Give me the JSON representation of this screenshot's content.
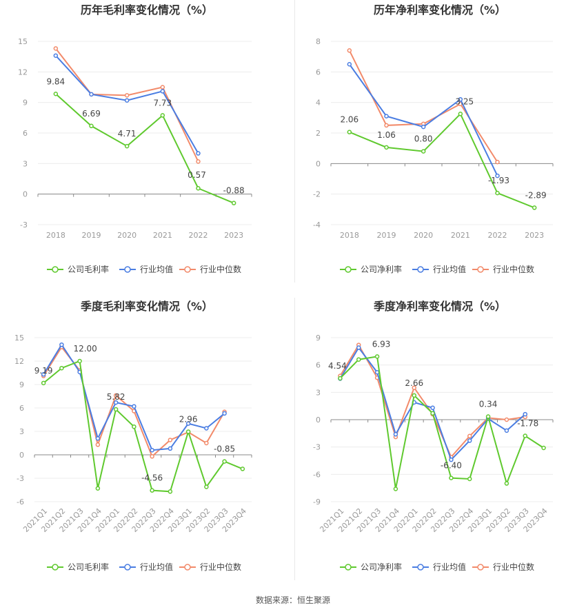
{
  "source": "数据来源：恒生聚源",
  "legend_labels_gross": [
    "公司毛利率",
    "行业均值",
    "行业中位数"
  ],
  "legend_labels_net": [
    "公司净利率",
    "行业均值",
    "行业中位数"
  ],
  "colors": {
    "company": "#5fc92e",
    "industry_avg": "#4a7de2",
    "industry_median": "#f28a6a",
    "grid": "#ececec",
    "axis_text": "#999999",
    "label_text": "#444444",
    "title_text": "#333333"
  },
  "chart_data": [
    {
      "type": "line",
      "title": "历年毛利率变化情况（%）",
      "categories": [
        "2018",
        "2019",
        "2020",
        "2021",
        "2022",
        "2023"
      ],
      "yticks": [
        -3,
        0,
        3,
        6,
        9,
        12,
        15
      ],
      "ylim": [
        -3,
        15
      ],
      "series": [
        {
          "name": "公司毛利率",
          "values": [
            9.84,
            6.69,
            4.71,
            7.73,
            0.57,
            -0.88
          ]
        },
        {
          "name": "行业均值",
          "values": [
            13.6,
            9.8,
            9.2,
            10.1,
            4.0,
            null
          ]
        },
        {
          "name": "行业中位数",
          "values": [
            14.3,
            9.8,
            9.7,
            10.5,
            3.2,
            null
          ]
        }
      ],
      "data_labels": [
        "9.84",
        "6.69",
        "4.71",
        "7.73",
        "0.57",
        "-0.88"
      ],
      "xlabel": "",
      "ylabel": ""
    },
    {
      "type": "line",
      "title": "历年净利率变化情况（%）",
      "categories": [
        "2018",
        "2019",
        "2020",
        "2021",
        "2022",
        "2023"
      ],
      "yticks": [
        -4,
        -2,
        0,
        2,
        4,
        6,
        8
      ],
      "ylim": [
        -4,
        8
      ],
      "series": [
        {
          "name": "公司净利率",
          "values": [
            2.06,
            1.06,
            0.8,
            3.25,
            -1.93,
            -2.89
          ]
        },
        {
          "name": "行业均值",
          "values": [
            6.5,
            3.1,
            2.4,
            4.2,
            -0.8,
            null
          ]
        },
        {
          "name": "行业中位数",
          "values": [
            7.4,
            2.5,
            2.6,
            3.9,
            0.1,
            null
          ]
        }
      ],
      "data_labels": [
        "2.06",
        "1.06",
        "0.80",
        "3.25",
        "-1.93",
        "-2.89"
      ],
      "xlabel": "",
      "ylabel": ""
    },
    {
      "type": "line",
      "title": "季度毛利率变化情况（%）",
      "categories": [
        "2021Q1",
        "2021Q2",
        "2021Q3",
        "2021Q4",
        "2022Q1",
        "2022Q2",
        "2022Q3",
        "2022Q4",
        "2023Q1",
        "2023Q2",
        "2023Q3",
        "2023Q4"
      ],
      "yticks": [
        -6,
        -3,
        0,
        3,
        6,
        9,
        12,
        15
      ],
      "ylim": [
        -6,
        15
      ],
      "series": [
        {
          "name": "公司毛利率",
          "values": [
            9.19,
            11.1,
            12.0,
            -4.3,
            5.82,
            3.6,
            -4.56,
            -4.7,
            2.96,
            -4.1,
            -0.85,
            -1.8
          ]
        },
        {
          "name": "行业均值",
          "values": [
            10.3,
            14.1,
            10.6,
            2.1,
            6.7,
            6.2,
            0.6,
            0.8,
            4.0,
            3.4,
            5.3,
            null
          ]
        },
        {
          "name": "行业中位数",
          "values": [
            10.1,
            13.8,
            10.8,
            1.3,
            7.6,
            5.6,
            -0.2,
            1.9,
            2.9,
            1.5,
            5.5,
            null
          ]
        }
      ],
      "data_labels": [
        "9.19",
        "",
        "12.00",
        "",
        "5.82",
        "",
        "-4.56",
        "",
        "2.96",
        "",
        "-0.85",
        ""
      ],
      "xlabel": "",
      "ylabel": ""
    },
    {
      "type": "line",
      "title": "季度净利率变化情况（%）",
      "categories": [
        "2021Q1",
        "2021Q2",
        "2021Q3",
        "2021Q4",
        "2022Q1",
        "2022Q2",
        "2022Q3",
        "2022Q4",
        "2023Q1",
        "2023Q2",
        "2023Q3",
        "2023Q4"
      ],
      "yticks": [
        -9,
        -6,
        -3,
        0,
        3,
        6,
        9
      ],
      "ylim": [
        -9,
        9
      ],
      "series": [
        {
          "name": "公司净利率",
          "values": [
            4.54,
            6.6,
            6.93,
            -7.6,
            2.66,
            0.7,
            -6.4,
            -6.5,
            0.34,
            -7.0,
            -1.78,
            -3.1
          ]
        },
        {
          "name": "行业均值",
          "values": [
            4.5,
            7.9,
            5.2,
            -1.6,
            1.9,
            1.3,
            -4.4,
            -2.3,
            0.1,
            -1.2,
            0.6,
            null
          ]
        },
        {
          "name": "行业中位数",
          "values": [
            4.8,
            8.2,
            4.6,
            -1.9,
            3.5,
            0.6,
            -4.1,
            -1.8,
            0.2,
            0.0,
            0.3,
            null
          ]
        }
      ],
      "data_labels": [
        "4.54",
        "",
        "6.93",
        "",
        "2.66",
        "",
        "-6.40",
        "",
        "0.34",
        "",
        "-1.78",
        ""
      ],
      "xlabel": "",
      "ylabel": ""
    }
  ]
}
